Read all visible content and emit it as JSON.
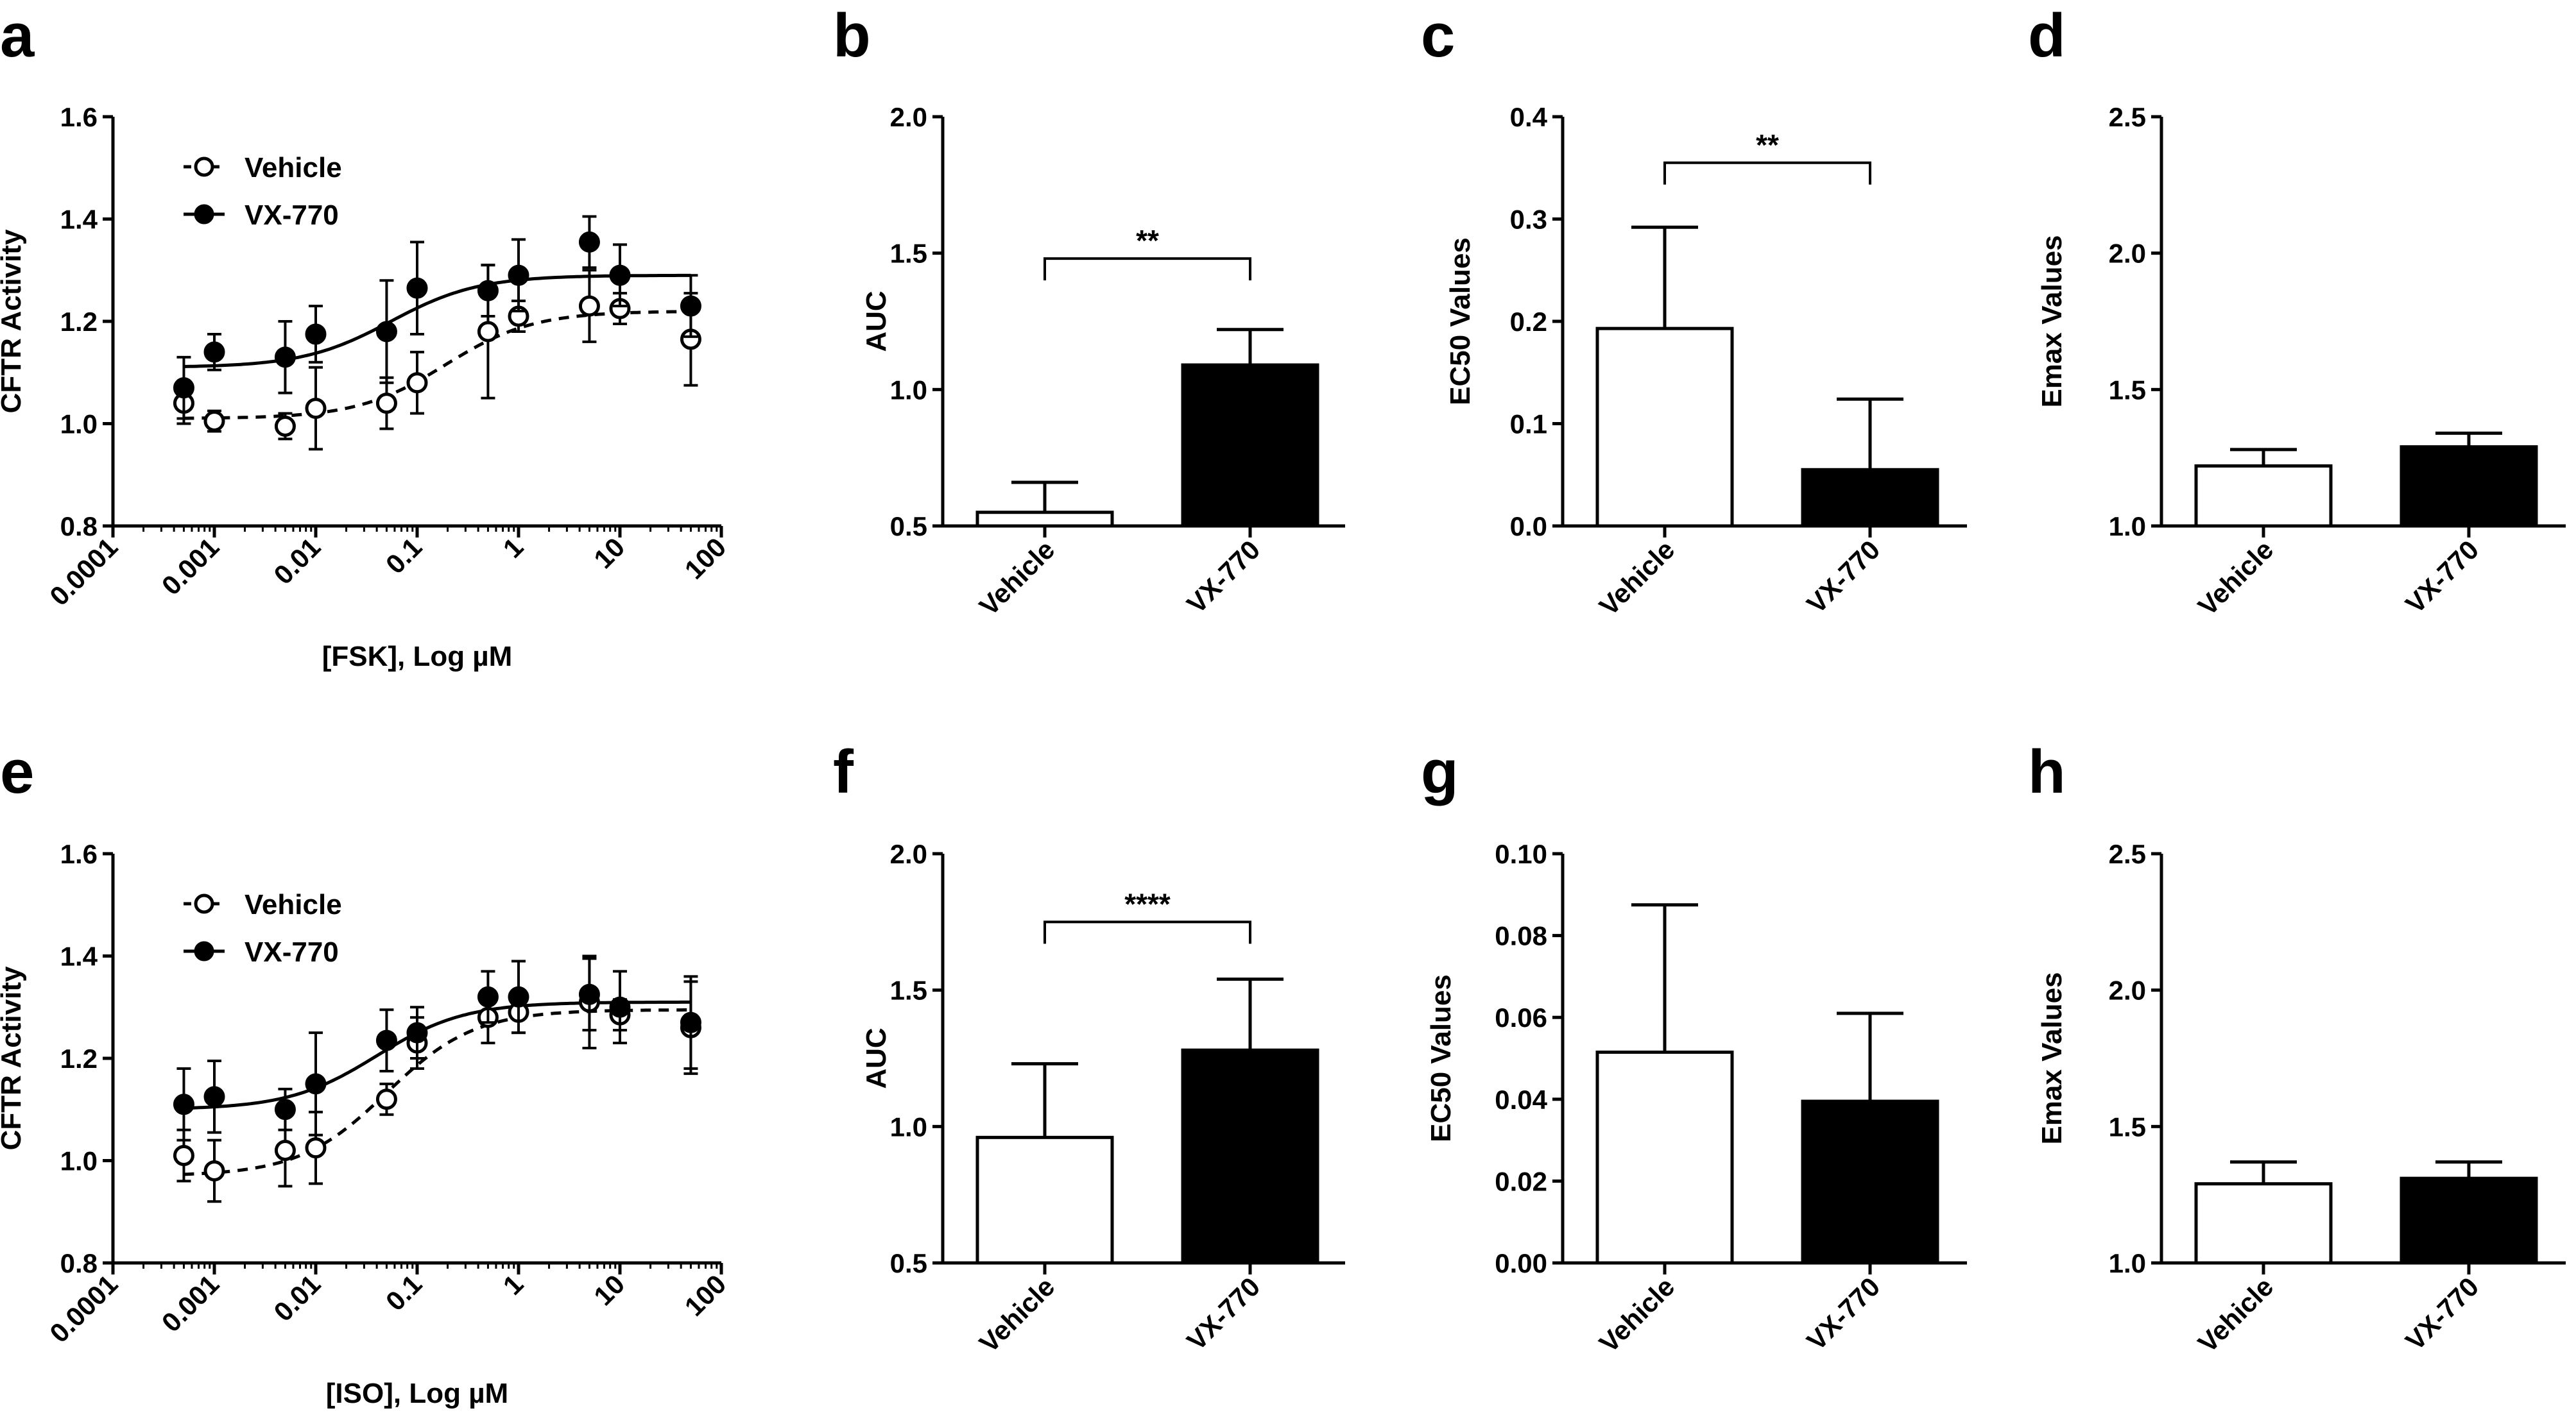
{
  "chart_data": [
    {
      "id": "a",
      "panel_label": "a",
      "type": "scatter",
      "xscale": "log",
      "xlim": [
        0.0001,
        100
      ],
      "xticks": [
        "0.0001",
        "0.001",
        "0.01",
        "0.1",
        "1",
        "10",
        "100"
      ],
      "xlabel": "[FSK], Log µM",
      "ylabel": "CFTR Activity",
      "ylim": [
        0.8,
        1.6
      ],
      "yticks": [
        "0.8",
        "1.0",
        "1.2",
        "1.4",
        "1.6"
      ],
      "legend": {
        "position": "top-left"
      },
      "series": [
        {
          "name": "Vehicle",
          "marker": "open-circle",
          "line": "dashed",
          "x": [
            0.0005,
            0.001,
            0.005,
            0.01,
            0.05,
            0.1,
            0.5,
            1,
            5,
            10,
            50
          ],
          "y": [
            1.04,
            1.005,
            0.995,
            1.03,
            1.04,
            1.08,
            1.18,
            1.21,
            1.23,
            1.225,
            1.165
          ],
          "err": [
            0.04,
            0.02,
            0.025,
            0.08,
            0.05,
            0.06,
            0.13,
            0.03,
            0.07,
            0.03,
            0.09
          ],
          "fit": {
            "bottom": 1.01,
            "top": 1.22,
            "ec50": 0.19
          }
        },
        {
          "name": "VX-770",
          "marker": "filled-circle",
          "line": "solid",
          "x": [
            0.0005,
            0.001,
            0.005,
            0.01,
            0.05,
            0.1,
            0.5,
            1,
            5,
            10,
            50
          ],
          "y": [
            1.07,
            1.14,
            1.13,
            1.175,
            1.18,
            1.265,
            1.26,
            1.29,
            1.355,
            1.29,
            1.23
          ],
          "err": [
            0.06,
            0.035,
            0.07,
            0.055,
            0.1,
            0.09,
            0.05,
            0.07,
            0.05,
            0.06,
            0.06
          ],
          "fit": {
            "bottom": 1.11,
            "top": 1.29,
            "ec50": 0.055
          }
        }
      ]
    },
    {
      "id": "b",
      "panel_label": "b",
      "type": "bar",
      "categories": [
        "Vehicle",
        "VX-770"
      ],
      "values": [
        0.55,
        1.09
      ],
      "errors": [
        0.11,
        0.13
      ],
      "fills": [
        "#ffffff",
        "#000000"
      ],
      "ylabel": "AUC",
      "ylim": [
        0.5,
        2.0
      ],
      "yticks": [
        "0.5",
        "1.0",
        "1.5",
        "2.0"
      ],
      "significance": {
        "text": "**",
        "level": 1.48
      }
    },
    {
      "id": "c",
      "panel_label": "c",
      "type": "bar",
      "categories": [
        "Vehicle",
        "VX-770"
      ],
      "values": [
        0.193,
        0.055
      ],
      "errors": [
        0.099,
        0.069
      ],
      "fills": [
        "#ffffff",
        "#000000"
      ],
      "ylabel": "EC50 Values",
      "ylim": [
        0.0,
        0.4
      ],
      "yticks": [
        "0.0",
        "0.1",
        "0.2",
        "0.3",
        "0.4"
      ],
      "significance": {
        "text": "**",
        "level": 0.355
      }
    },
    {
      "id": "d",
      "panel_label": "d",
      "type": "bar",
      "categories": [
        "Vehicle",
        "VX-770"
      ],
      "values": [
        1.22,
        1.29
      ],
      "errors": [
        0.06,
        0.05
      ],
      "fills": [
        "#ffffff",
        "#000000"
      ],
      "ylabel": "Emax Values",
      "ylim": [
        1.0,
        2.5
      ],
      "yticks": [
        "1.0",
        "1.5",
        "2.0",
        "2.5"
      ]
    },
    {
      "id": "e",
      "panel_label": "e",
      "type": "scatter",
      "xscale": "log",
      "xlim": [
        0.0001,
        100
      ],
      "xticks": [
        "0.0001",
        "0.001",
        "0.01",
        "0.1",
        "1",
        "10",
        "100"
      ],
      "xlabel": "[ISO], Log µM",
      "ylabel": "CFTR Activity",
      "ylim": [
        0.8,
        1.6
      ],
      "yticks": [
        "0.8",
        "1.0",
        "1.2",
        "1.4",
        "1.6"
      ],
      "legend": {
        "position": "top-left"
      },
      "series": [
        {
          "name": "Vehicle",
          "marker": "open-circle",
          "line": "dashed",
          "x": [
            0.0005,
            0.001,
            0.005,
            0.01,
            0.05,
            0.1,
            0.5,
            1,
            5,
            10,
            50
          ],
          "y": [
            1.01,
            0.98,
            1.02,
            1.025,
            1.12,
            1.23,
            1.28,
            1.29,
            1.31,
            1.285,
            1.26
          ],
          "err": [
            0.05,
            0.06,
            0.07,
            0.07,
            0.03,
            0.05,
            0.05,
            0.04,
            0.09,
            0.03,
            0.09
          ],
          "fit": {
            "bottom": 0.97,
            "top": 1.295,
            "ec50": 0.05
          }
        },
        {
          "name": "VX-770",
          "marker": "filled-circle",
          "line": "solid",
          "x": [
            0.0005,
            0.001,
            0.005,
            0.01,
            0.05,
            0.1,
            0.5,
            1,
            5,
            10,
            50
          ],
          "y": [
            1.11,
            1.125,
            1.1,
            1.15,
            1.235,
            1.25,
            1.32,
            1.32,
            1.325,
            1.3,
            1.27
          ],
          "err": [
            0.07,
            0.07,
            0.04,
            0.1,
            0.06,
            0.05,
            0.05,
            0.07,
            0.07,
            0.07,
            0.09
          ],
          "fit": {
            "bottom": 1.1,
            "top": 1.31,
            "ec50": 0.04
          }
        }
      ]
    },
    {
      "id": "f",
      "panel_label": "f",
      "type": "bar",
      "categories": [
        "Vehicle",
        "VX-770"
      ],
      "values": [
        0.96,
        1.28
      ],
      "errors": [
        0.27,
        0.26
      ],
      "fills": [
        "#ffffff",
        "#000000"
      ],
      "ylabel": "AUC",
      "ylim": [
        0.5,
        2.0
      ],
      "yticks": [
        "0.5",
        "1.0",
        "1.5",
        "2.0"
      ],
      "significance": {
        "text": "****",
        "level": 1.75
      }
    },
    {
      "id": "g",
      "panel_label": "g",
      "type": "bar",
      "categories": [
        "Vehicle",
        "VX-770"
      ],
      "values": [
        0.0515,
        0.0395
      ],
      "errors": [
        0.036,
        0.0215
      ],
      "fills": [
        "#ffffff",
        "#000000"
      ],
      "ylabel": "EC50 Values",
      "ylim": [
        0.0,
        0.1
      ],
      "yticks": [
        "0.00",
        "0.02",
        "0.04",
        "0.06",
        "0.08",
        "0.10"
      ]
    },
    {
      "id": "h",
      "panel_label": "h",
      "type": "bar",
      "categories": [
        "Vehicle",
        "VX-770"
      ],
      "values": [
        1.29,
        1.31
      ],
      "errors": [
        0.08,
        0.06
      ],
      "fills": [
        "#ffffff",
        "#000000"
      ],
      "ylabel": "Emax Values",
      "ylim": [
        1.0,
        2.5
      ],
      "yticks": [
        "1.0",
        "1.5",
        "2.0",
        "2.5"
      ]
    }
  ]
}
